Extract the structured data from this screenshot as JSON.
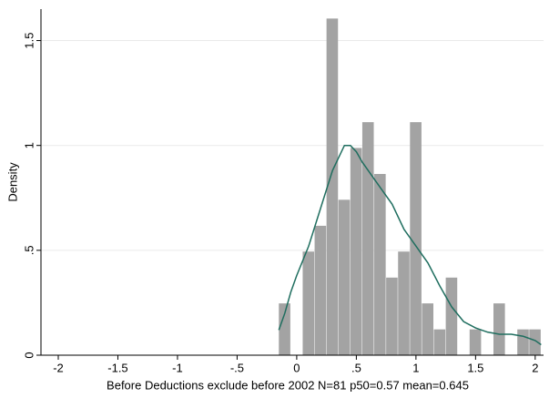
{
  "chart_data": {
    "type": "histogram",
    "xlabel": "Before Deductions exclude before 2002 N=81 p50=0.57 mean=0.645",
    "ylabel": "Density",
    "bins": [
      -0.15,
      -0.05,
      0.05,
      0.15,
      0.25,
      0.35,
      0.45,
      0.55,
      0.65,
      0.75,
      0.85,
      0.95,
      1.05,
      1.15,
      1.25,
      1.35,
      1.45,
      1.55,
      1.65,
      1.75,
      1.85,
      1.95,
      2.05
    ],
    "values": [
      0.247,
      0,
      0.494,
      0.617,
      1.605,
      0.741,
      0.988,
      1.111,
      0.864,
      0.37,
      0.494,
      1.111,
      0.247,
      0.123,
      0.37,
      0,
      0.123,
      0,
      0.247,
      0,
      0.123,
      0.123
    ],
    "color": "#a3a3a3",
    "kde": {
      "color": "#1f6e5f",
      "x": [
        -0.15,
        -0.1,
        -0.05,
        0,
        0.1,
        0.2,
        0.3,
        0.4,
        0.45,
        0.5,
        0.55,
        0.6,
        0.7,
        0.8,
        0.9,
        1.0,
        1.1,
        1.2,
        1.3,
        1.4,
        1.5,
        1.6,
        1.7,
        1.8,
        1.9,
        2.0,
        2.05
      ],
      "values": [
        0.12,
        0.2,
        0.3,
        0.38,
        0.52,
        0.7,
        0.88,
        1.0,
        1.0,
        0.97,
        0.92,
        0.88,
        0.8,
        0.72,
        0.6,
        0.52,
        0.44,
        0.33,
        0.23,
        0.16,
        0.13,
        0.11,
        0.1,
        0.1,
        0.09,
        0.07,
        0.05
      ]
    },
    "xlim": [
      -2.145,
      2.07
    ],
    "ylim": [
      0,
      1.65
    ],
    "xticks": [
      -2,
      -1.5,
      -1,
      {
        "value": -0.5,
        "label": "-.5"
      },
      0,
      {
        "value": 0.5,
        "label": ".5"
      },
      1,
      1.5,
      2
    ],
    "yticks": [
      0,
      {
        "value": 0.5,
        "label": ".5"
      },
      1,
      1.5
    ],
    "grid": true
  }
}
